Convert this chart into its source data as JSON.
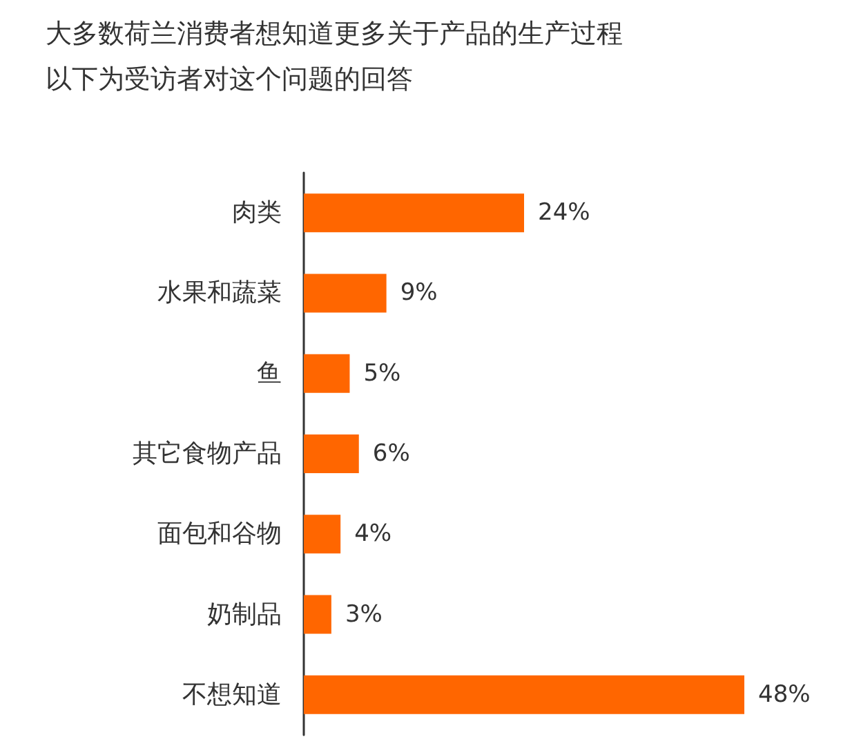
{
  "chart_data": {
    "type": "bar",
    "orientation": "horizontal",
    "title": "大多数荷兰消费者想知道更多关于产品的生产过程",
    "subtitle": "以下为受访者对这个问题的回答",
    "categories": [
      "肉类",
      "水果和蔬菜",
      "鱼",
      "其它食物产品",
      "面包和谷物",
      "奶制品",
      "不想知道"
    ],
    "values": [
      24,
      9,
      5,
      6,
      4,
      3,
      48
    ],
    "value_labels": [
      "24%",
      "9%",
      "5%",
      "6%",
      "4%",
      "3%",
      "48%"
    ],
    "color": "#ff6600"
  }
}
